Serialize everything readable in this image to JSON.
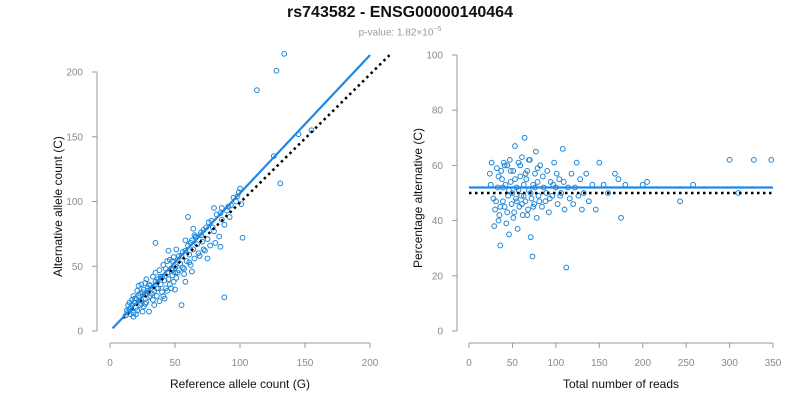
{
  "header": {
    "title": "rs743582 - ENSG00000140464",
    "pvalue_prefix": "p-value: 1.82×10",
    "pvalue_exp": "−5"
  },
  "colors": {
    "points": "#1c86d9",
    "fit_line": "#1e88e5",
    "reference_line": "#000000",
    "axis": "#9a9a9a"
  },
  "chart_data": [
    {
      "type": "scatter",
      "xlabel": "Reference allele count (G)",
      "ylabel": "Alternative allele count (C)",
      "xlim": [
        0,
        200
      ],
      "ylim": [
        0,
        200
      ],
      "xticks": [
        0,
        50,
        100,
        150,
        200
      ],
      "yticks": [
        0,
        50,
        100,
        150,
        200
      ],
      "grid": false,
      "fit_line": {
        "x": [
          2,
          200
        ],
        "y": [
          2,
          213
        ]
      },
      "reference_line": {
        "x": [
          10,
          215
        ],
        "y": [
          10,
          213
        ]
      },
      "points": [
        [
          12,
          12
        ],
        [
          14,
          15
        ],
        [
          15,
          17
        ],
        [
          16,
          13
        ],
        [
          17,
          20
        ],
        [
          18,
          14
        ],
        [
          19,
          22
        ],
        [
          20,
          18
        ],
        [
          20,
          25
        ],
        [
          21,
          16
        ],
        [
          22,
          27
        ],
        [
          23,
          20
        ],
        [
          24,
          24
        ],
        [
          25,
          30
        ],
        [
          26,
          19
        ],
        [
          27,
          28
        ],
        [
          28,
          22
        ],
        [
          29,
          33
        ],
        [
          30,
          26
        ],
        [
          30,
          15
        ],
        [
          31,
          35
        ],
        [
          32,
          29
        ],
        [
          33,
          24
        ],
        [
          34,
          31
        ],
        [
          35,
          38
        ],
        [
          36,
          27
        ],
        [
          37,
          33
        ],
        [
          38,
          23
        ],
        [
          39,
          36
        ],
        [
          40,
          30
        ],
        [
          40,
          42
        ],
        [
          41,
          27
        ],
        [
          42,
          39
        ],
        [
          43,
          33
        ],
        [
          44,
          45
        ],
        [
          45,
          40
        ],
        [
          46,
          36
        ],
        [
          47,
          48
        ],
        [
          48,
          43
        ],
        [
          49,
          38
        ],
        [
          50,
          50
        ],
        [
          50,
          45
        ],
        [
          51,
          41
        ],
        [
          52,
          55
        ],
        [
          53,
          47
        ],
        [
          54,
          52
        ],
        [
          55,
          58
        ],
        [
          56,
          49
        ],
        [
          57,
          44
        ],
        [
          58,
          62
        ],
        [
          59,
          54
        ],
        [
          60,
          66
        ],
        [
          61,
          59
        ],
        [
          62,
          51
        ],
        [
          63,
          70
        ],
        [
          64,
          63
        ],
        [
          65,
          56
        ],
        [
          66,
          73
        ],
        [
          67,
          67
        ],
        [
          68,
          60
        ],
        [
          70,
          76
        ],
        [
          71,
          69
        ],
        [
          72,
          63
        ],
        [
          74,
          80
        ],
        [
          75,
          71
        ],
        [
          77,
          66
        ],
        [
          78,
          85
        ],
        [
          80,
          77
        ],
        [
          82,
          90
        ],
        [
          84,
          73
        ],
        [
          86,
          95
        ],
        [
          88,
          82
        ],
        [
          90,
          93
        ],
        [
          92,
          88
        ],
        [
          95,
          103
        ],
        [
          97,
          100
        ],
        [
          99,
          107
        ],
        [
          100,
          110
        ],
        [
          102,
          72
        ],
        [
          88,
          26
        ],
        [
          55,
          20
        ],
        [
          35,
          68
        ],
        [
          45,
          62
        ],
        [
          60,
          88
        ],
        [
          80,
          95
        ],
        [
          113,
          186
        ],
        [
          126,
          135
        ],
        [
          128,
          201
        ],
        [
          131,
          114
        ],
        [
          134,
          214
        ],
        [
          145,
          152
        ],
        [
          155,
          155
        ],
        [
          46,
          55
        ],
        [
          38,
          47
        ],
        [
          28,
          40
        ],
        [
          22,
          35
        ],
        [
          18,
          27
        ],
        [
          25,
          15
        ],
        [
          34,
          20
        ],
        [
          42,
          25
        ],
        [
          50,
          32
        ],
        [
          58,
          38
        ],
        [
          26,
          32
        ],
        [
          33,
          42
        ],
        [
          41,
          51
        ],
        [
          49,
          57
        ],
        [
          57,
          48
        ],
        [
          65,
          74
        ],
        [
          73,
          62
        ],
        [
          81,
          68
        ],
        [
          16,
          18
        ],
        [
          19,
          25
        ],
        [
          23,
          29
        ],
        [
          27,
          21
        ],
        [
          31,
          27
        ],
        [
          36,
          33
        ],
        [
          44,
          31
        ],
        [
          52,
          45
        ],
        [
          61,
          53
        ],
        [
          69,
          58
        ],
        [
          14,
          20
        ],
        [
          18,
          11
        ],
        [
          21,
          31
        ],
        [
          24,
          36
        ],
        [
          29,
          31
        ],
        [
          37,
          40
        ],
        [
          43,
          48
        ],
        [
          48,
          54
        ],
        [
          53,
          58
        ],
        [
          56,
          61
        ],
        [
          62,
          68
        ],
        [
          66,
          72
        ],
        [
          72,
          78
        ],
        [
          76,
          84
        ],
        [
          85,
          91
        ],
        [
          93,
          97
        ],
        [
          98,
          104
        ],
        [
          48,
          47
        ],
        [
          39,
          42
        ],
        [
          30,
          36
        ],
        [
          24,
          21
        ],
        [
          20,
          13
        ],
        [
          17,
          24
        ],
        [
          13,
          16
        ],
        [
          15,
          22
        ],
        [
          27,
          37
        ],
        [
          35,
          45
        ],
        [
          44,
          54
        ],
        [
          51,
          63
        ],
        [
          58,
          70
        ],
        [
          64,
          79
        ],
        [
          70,
          74
        ],
        [
          79,
          80
        ],
        [
          86,
          86
        ],
        [
          91,
          96
        ],
        [
          101,
          98
        ],
        [
          63,
          46
        ],
        [
          75,
          56
        ],
        [
          85,
          65
        ],
        [
          47,
          33
        ]
      ]
    },
    {
      "type": "scatter",
      "xlabel": "Total number of reads",
      "ylabel": "Percentage alternative (C)",
      "xlim": [
        0,
        350
      ],
      "ylim": [
        0,
        100
      ],
      "xticks": [
        0,
        50,
        100,
        150,
        200,
        250,
        300,
        350
      ],
      "yticks": [
        0,
        20,
        40,
        60,
        80,
        100
      ],
      "grid": false,
      "fit_line": {
        "x": [
          0,
          350
        ],
        "y": [
          52,
          52
        ]
      },
      "reference_line": {
        "x": [
          0,
          350
        ],
        "y": [
          50,
          50
        ]
      },
      "points": [
        [
          24,
          57
        ],
        [
          26,
          61
        ],
        [
          28,
          48
        ],
        [
          30,
          44
        ],
        [
          32,
          59
        ],
        [
          33,
          52
        ],
        [
          34,
          40
        ],
        [
          35,
          42
        ],
        [
          36,
          31
        ],
        [
          37,
          58
        ],
        [
          38,
          55
        ],
        [
          39,
          47
        ],
        [
          40,
          61
        ],
        [
          41,
          45
        ],
        [
          42,
          53
        ],
        [
          43,
          39
        ],
        [
          44,
          60
        ],
        [
          45,
          49
        ],
        [
          46,
          35
        ],
        [
          47,
          62
        ],
        [
          48,
          54
        ],
        [
          49,
          46
        ],
        [
          50,
          50
        ],
        [
          51,
          58
        ],
        [
          52,
          43
        ],
        [
          53,
          67
        ],
        [
          54,
          48
        ],
        [
          55,
          52
        ],
        [
          56,
          37
        ],
        [
          57,
          61
        ],
        [
          58,
          45
        ],
        [
          59,
          56
        ],
        [
          60,
          49
        ],
        [
          61,
          63
        ],
        [
          62,
          42
        ],
        [
          63,
          53
        ],
        [
          64,
          70
        ],
        [
          65,
          47
        ],
        [
          66,
          55
        ],
        [
          67,
          58
        ],
        [
          68,
          44
        ],
        [
          69,
          51
        ],
        [
          70,
          62
        ],
        [
          71,
          34
        ],
        [
          72,
          48
        ],
        [
          73,
          27
        ],
        [
          74,
          53
        ],
        [
          75,
          46
        ],
        [
          76,
          57
        ],
        [
          77,
          65
        ],
        [
          78,
          41
        ],
        [
          79,
          54
        ],
        [
          80,
          49
        ],
        [
          82,
          60
        ],
        [
          84,
          45
        ],
        [
          86,
          52
        ],
        [
          88,
          47
        ],
        [
          90,
          58
        ],
        [
          92,
          43
        ],
        [
          94,
          54
        ],
        [
          96,
          49
        ],
        [
          98,
          61
        ],
        [
          100,
          52
        ],
        [
          102,
          46
        ],
        [
          104,
          55
        ],
        [
          106,
          50
        ],
        [
          108,
          66
        ],
        [
          110,
          44
        ],
        [
          112,
          23
        ],
        [
          114,
          52
        ],
        [
          116,
          48
        ],
        [
          118,
          57
        ],
        [
          120,
          46
        ],
        [
          122,
          52
        ],
        [
          124,
          61
        ],
        [
          126,
          49
        ],
        [
          128,
          55
        ],
        [
          130,
          44
        ],
        [
          132,
          50
        ],
        [
          135,
          57
        ],
        [
          138,
          47
        ],
        [
          142,
          53
        ],
        [
          146,
          44
        ],
        [
          150,
          61
        ],
        [
          155,
          53
        ],
        [
          160,
          50
        ],
        [
          168,
          57
        ],
        [
          172,
          55
        ],
        [
          175,
          41
        ],
        [
          180,
          53
        ],
        [
          200,
          53
        ],
        [
          205,
          54
        ],
        [
          243,
          47
        ],
        [
          258,
          53
        ],
        [
          300,
          62
        ],
        [
          310,
          50
        ],
        [
          328,
          62
        ],
        [
          348,
          62
        ],
        [
          25,
          53
        ],
        [
          29,
          38
        ],
        [
          31,
          47
        ],
        [
          34,
          56
        ],
        [
          36,
          45
        ],
        [
          39,
          52
        ],
        [
          41,
          60
        ],
        [
          44,
          43
        ],
        [
          46,
          51
        ],
        [
          48,
          58
        ],
        [
          51,
          41
        ],
        [
          53,
          55
        ],
        [
          55,
          47
        ],
        [
          57,
          51
        ],
        [
          59,
          60
        ],
        [
          61,
          46
        ],
        [
          63,
          49
        ],
        [
          65,
          57
        ],
        [
          67,
          42
        ],
        [
          69,
          62
        ],
        [
          71,
          50
        ],
        [
          74,
          45
        ],
        [
          76,
          52
        ],
        [
          79,
          59
        ],
        [
          81,
          47
        ],
        [
          85,
          56
        ],
        [
          89,
          50
        ],
        [
          93,
          48
        ],
        [
          97,
          53
        ],
        [
          101,
          57
        ],
        [
          105,
          49
        ],
        [
          109,
          54
        ]
      ]
    }
  ]
}
